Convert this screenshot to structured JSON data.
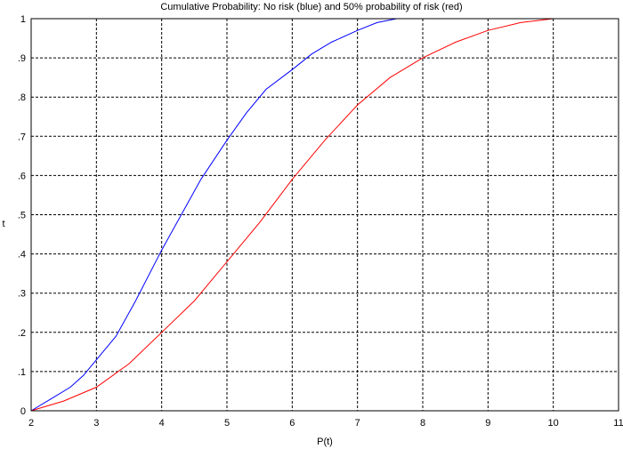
{
  "chart_data": {
    "type": "line",
    "title": "Cumulative Probability: No risk (blue) and 50% probability of risk (red)",
    "xlabel": "P(t)",
    "ylabel": "t",
    "xlim": [
      2,
      11
    ],
    "ylim": [
      0,
      1
    ],
    "x_ticks": [
      2,
      3,
      4,
      5,
      6,
      7,
      8,
      9,
      10,
      11
    ],
    "x_tick_labels": [
      "2",
      "3",
      "4",
      "5",
      "6",
      "7",
      "8",
      "9",
      "10",
      "11"
    ],
    "y_ticks": [
      0,
      0.1,
      0.2,
      0.3,
      0.4,
      0.5,
      0.6,
      0.7,
      0.8,
      0.9,
      1
    ],
    "y_tick_labels": [
      "0",
      ".1",
      ".2",
      ".3",
      ".4",
      ".5",
      ".6",
      ".7",
      ".8",
      ".9",
      "1"
    ],
    "grid": true,
    "series": [
      {
        "color": "#0000ff",
        "x": [
          2.0,
          2.3,
          2.6,
          2.8,
          3.0,
          3.3,
          3.6,
          4.0,
          4.3,
          4.6,
          5.0,
          5.3,
          5.6,
          6.0,
          6.3,
          6.6,
          7.0,
          7.3,
          7.6,
          8.0,
          11.0
        ],
        "y": [
          0.0,
          0.03,
          0.06,
          0.09,
          0.13,
          0.19,
          0.28,
          0.41,
          0.5,
          0.59,
          0.69,
          0.76,
          0.82,
          0.87,
          0.91,
          0.94,
          0.97,
          0.99,
          1.0,
          1.0,
          1.0
        ]
      },
      {
        "color": "#ff0000",
        "x": [
          2.0,
          2.5,
          3.0,
          3.5,
          4.0,
          4.5,
          5.0,
          5.5,
          6.0,
          6.5,
          7.0,
          7.5,
          8.0,
          8.5,
          9.0,
          9.5,
          10.0,
          10.2,
          11.0
        ],
        "y": [
          0.0,
          0.025,
          0.06,
          0.12,
          0.2,
          0.28,
          0.38,
          0.48,
          0.59,
          0.69,
          0.78,
          0.85,
          0.9,
          0.94,
          0.97,
          0.99,
          1.0,
          1.0,
          1.0
        ]
      }
    ]
  }
}
